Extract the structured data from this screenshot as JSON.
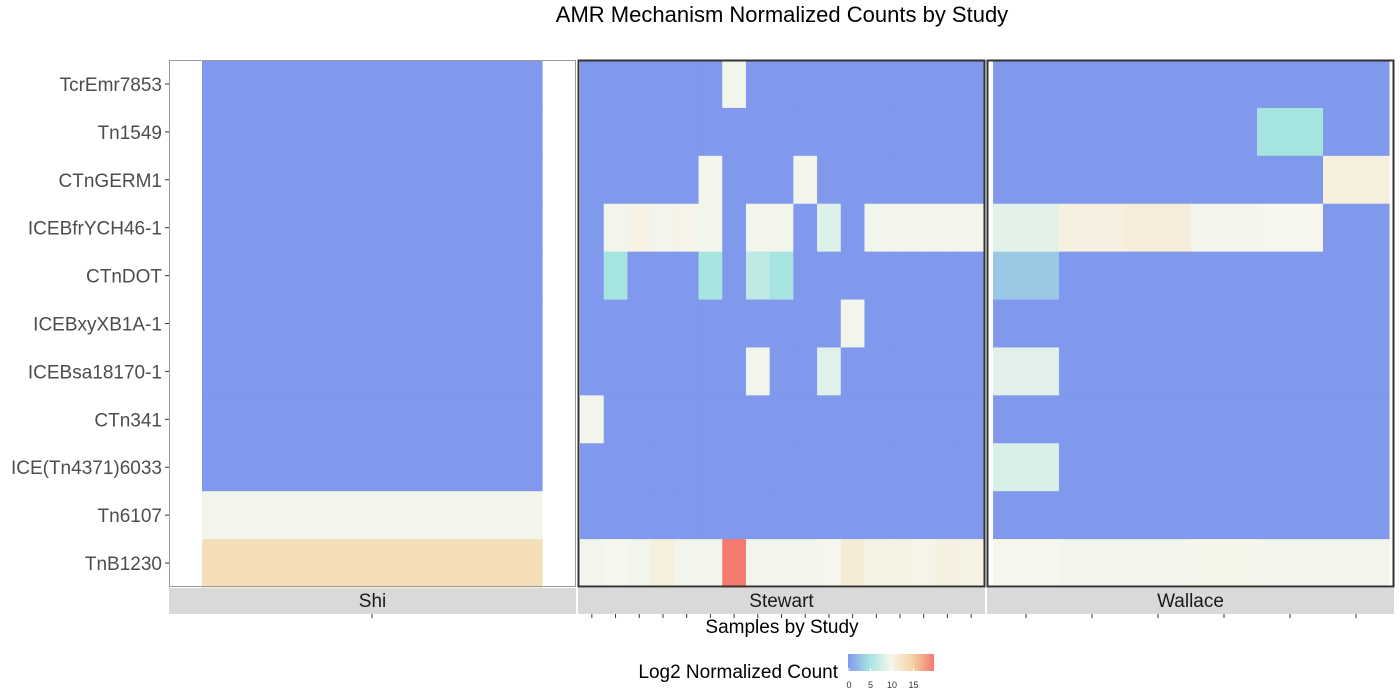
{
  "chart_data": {
    "type": "heatmap",
    "title": "AMR Mechanism Normalized Counts by Study",
    "xlabel": "Samples by Study",
    "ylabel": "",
    "rows": [
      "TcrEmr7853",
      "Tn1549",
      "CTnGERM1",
      "ICEBfrYCH46-1",
      "CTnDOT",
      "ICEBxyXB1A-1",
      "ICEBsa18170-1",
      "CTn341",
      "ICE(Tn4371)6033",
      "Tn6107",
      "TnB1230"
    ],
    "legend": {
      "title": "Log2 Normalized Count",
      "ticks": [
        0,
        5,
        10,
        15
      ],
      "range": [
        0,
        20
      ],
      "colors": [
        "#8199ec",
        "#a6e4e0",
        "#f6f6ec",
        "#f2d3a2",
        "#f4796f"
      ]
    },
    "facets": [
      {
        "name": "Shi",
        "samples": 1,
        "values": [
          [
            0
          ],
          [
            0
          ],
          [
            0
          ],
          [
            0
          ],
          [
            0
          ],
          [
            0
          ],
          [
            0
          ],
          [
            0
          ],
          [
            0
          ],
          [
            9.7
          ],
          [
            13.5
          ]
        ]
      },
      {
        "name": "Stewart",
        "samples": 17,
        "values": [
          [
            0,
            0,
            0,
            0,
            0,
            0,
            9.7,
            0,
            0,
            0,
            0,
            0,
            0,
            0,
            0,
            0,
            0
          ],
          [
            0,
            0,
            0,
            0,
            0,
            0,
            0,
            0,
            0,
            0,
            0,
            0,
            0,
            0,
            0,
            0,
            0
          ],
          [
            0,
            0,
            0,
            0,
            0,
            9.7,
            0,
            0,
            0,
            9.7,
            0,
            0,
            0,
            0,
            0,
            0,
            0
          ],
          [
            0,
            9.7,
            10.5,
            9.7,
            10.3,
            9.7,
            0,
            9.7,
            9.7,
            0,
            8.5,
            0,
            9.7,
            9.7,
            9.7,
            9.7,
            9.7
          ],
          [
            0,
            5,
            0,
            0,
            0,
            5.2,
            0,
            6.5,
            5,
            0,
            0,
            0,
            0,
            0,
            0,
            0,
            0
          ],
          [
            0,
            0,
            0,
            0,
            0,
            0,
            0,
            0,
            0,
            0,
            0,
            9.7,
            0,
            0,
            0,
            0,
            0
          ],
          [
            0,
            0,
            0,
            0,
            0,
            0,
            0,
            9.7,
            0,
            0,
            8.7,
            0,
            0,
            0,
            0,
            0,
            0
          ],
          [
            9.7,
            0,
            0,
            0,
            0,
            0,
            0,
            0,
            0,
            0,
            0,
            0,
            0,
            0,
            0,
            0,
            0
          ],
          [
            0,
            0,
            0,
            0,
            0,
            0,
            0,
            0,
            0,
            0,
            0,
            0,
            0,
            0,
            0,
            0,
            0
          ],
          [
            0,
            0,
            0,
            0,
            0,
            0,
            0,
            0,
            0,
            0,
            0,
            0,
            0,
            0,
            0,
            0,
            0
          ],
          [
            9.7,
            10,
            9.7,
            11,
            9.7,
            9.7,
            20,
            9.7,
            9.7,
            9.7,
            10,
            11.5,
            10.5,
            10.5,
            10.3,
            10.8,
            10.5
          ]
        ]
      },
      {
        "name": "Wallace",
        "samples": 6,
        "values": [
          [
            0,
            0,
            0,
            0,
            0,
            0
          ],
          [
            0,
            0,
            0,
            0,
            5,
            0
          ],
          [
            0,
            0,
            0,
            0,
            0,
            11
          ],
          [
            8.8,
            10.8,
            11.3,
            9.7,
            10,
            0
          ],
          [
            3.2,
            0,
            0,
            0,
            0,
            0
          ],
          [
            0,
            0,
            0,
            0,
            0,
            0
          ],
          [
            8.7,
            0,
            0,
            0,
            0,
            0
          ],
          [
            0,
            0,
            0,
            0,
            0,
            0
          ],
          [
            8.2,
            0,
            0,
            0,
            0,
            0
          ],
          [
            0,
            0,
            0,
            0,
            0,
            0
          ],
          [
            10,
            9.7,
            9.7,
            10.2,
            9.7,
            9.7
          ]
        ]
      }
    ]
  }
}
